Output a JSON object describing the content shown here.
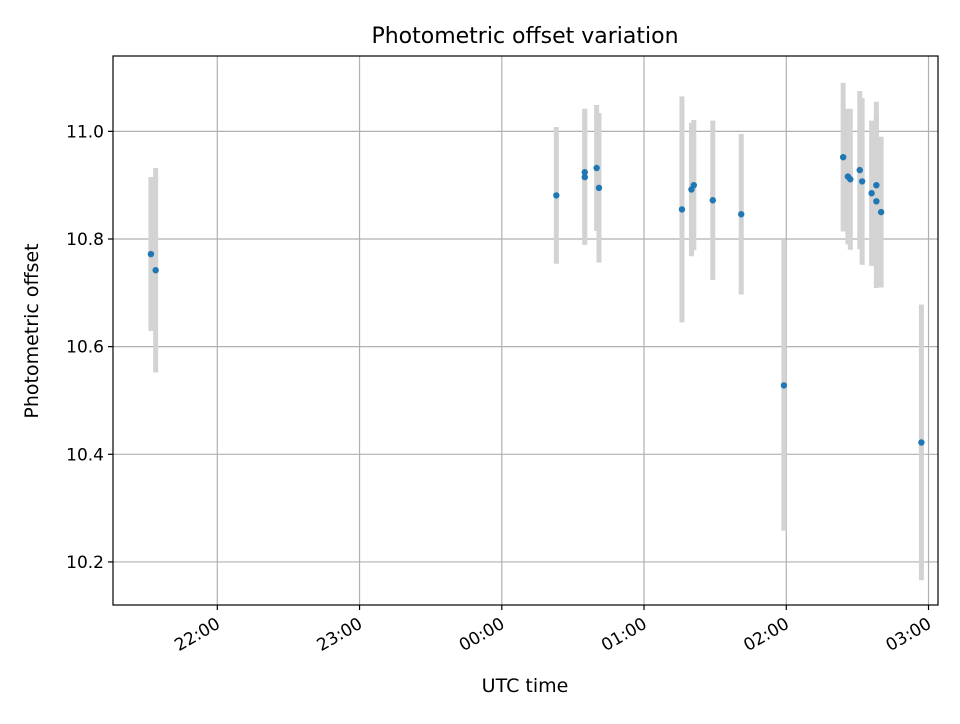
{
  "chart_data": {
    "type": "scatter",
    "title": "Photometric offset variation",
    "xlabel": "UTC time",
    "ylabel": "Photometric offset",
    "x_axis": {
      "kind": "time",
      "range": [
        "21:16",
        "03:04"
      ],
      "ticks": [
        "22:00",
        "23:00",
        "00:00",
        "01:00",
        "02:00",
        "03:00"
      ]
    },
    "y_axis": {
      "range": [
        10.12,
        11.14
      ],
      "ticks": [
        "10.2",
        "10.4",
        "10.6",
        "10.8",
        "11.0"
      ]
    },
    "grid": true,
    "colors": {
      "points": "#1f77b4",
      "errorbars": "#d3d3d3",
      "grid": "#b0b0b0"
    },
    "series": [
      {
        "points": [
          {
            "time": "21:32",
            "y": 10.772,
            "err": 0.143
          },
          {
            "time": "21:34",
            "y": 10.742,
            "err": 0.19
          },
          {
            "time": "00:23",
            "y": 10.881,
            "err": 0.127
          },
          {
            "time": "00:35",
            "y": 10.924,
            "err": 0.118
          },
          {
            "time": "00:35",
            "y": 10.915,
            "err": 0.126
          },
          {
            "time": "00:40",
            "y": 10.932,
            "err": 0.117
          },
          {
            "time": "00:41",
            "y": 10.895,
            "err": 0.139
          },
          {
            "time": "01:16",
            "y": 10.855,
            "err": 0.21
          },
          {
            "time": "01:20",
            "y": 10.892,
            "err": 0.124
          },
          {
            "time": "01:21",
            "y": 10.9,
            "err": 0.121
          },
          {
            "time": "01:29",
            "y": 10.872,
            "err": 0.148
          },
          {
            "time": "01:41",
            "y": 10.846,
            "err": 0.149
          },
          {
            "time": "01:59",
            "y": 10.528,
            "err": 0.27
          },
          {
            "time": "02:24",
            "y": 10.952,
            "err": 0.138
          },
          {
            "time": "02:26",
            "y": 10.916,
            "err": 0.126
          },
          {
            "time": "02:27",
            "y": 10.911,
            "err": 0.131
          },
          {
            "time": "02:31",
            "y": 10.928,
            "err": 0.147
          },
          {
            "time": "02:32",
            "y": 10.907,
            "err": 0.155
          },
          {
            "time": "02:36",
            "y": 10.885,
            "err": 0.135
          },
          {
            "time": "02:38",
            "y": 10.9,
            "err": 0.155
          },
          {
            "time": "02:38",
            "y": 10.87,
            "err": 0.161
          },
          {
            "time": "02:40",
            "y": 10.85,
            "err": 0.14
          },
          {
            "time": "02:57",
            "y": 10.422,
            "err": 0.256
          }
        ]
      }
    ]
  }
}
